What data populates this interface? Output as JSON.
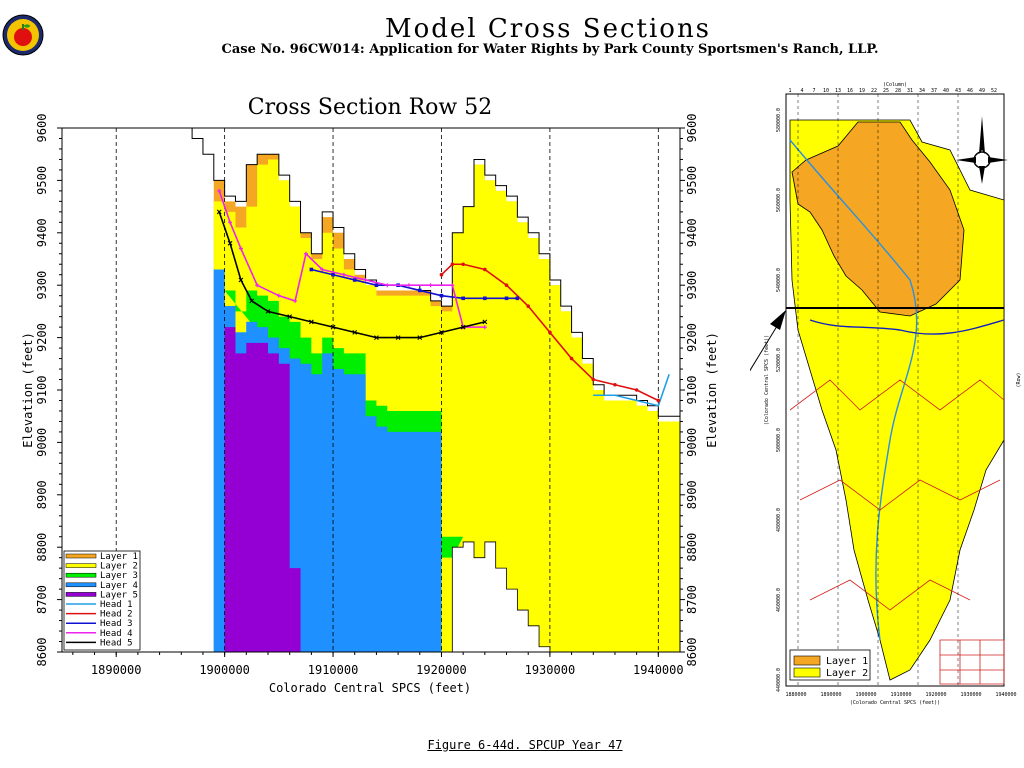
{
  "header": {
    "title": "Model Cross Sections",
    "subtitle": "Case No. 96CW014: Application for Water Rights by Park County Sportsmen's Ranch, LLP."
  },
  "caption": "Figure 6-44d.  SPCUP Year 47",
  "chart_data": {
    "type": "area",
    "title": "Cross Section Row 52",
    "xlabel": "Colorado Central SPCS (feet)",
    "ylabel": "Elevation (feet)",
    "xlim": [
      1885000,
      1942000
    ],
    "ylim": [
      8600,
      9600
    ],
    "x_ticks": [
      "1890000",
      "1900000",
      "1910000",
      "1920000",
      "1930000",
      "1940000"
    ],
    "y_ticks": [
      "8600",
      "8700",
      "8800",
      "8900",
      "9000",
      "9100",
      "9200",
      "9300",
      "9400",
      "9500",
      "9600"
    ],
    "grid": "vertical dashed lines at x ticks",
    "legend_position": "bottom-left",
    "legend": [
      {
        "label": "Layer 1",
        "kind": "layer",
        "color": "#f5a623"
      },
      {
        "label": "Layer 2",
        "kind": "layer",
        "color": "#ffff00"
      },
      {
        "label": "Layer 3",
        "kind": "layer",
        "color": "#00ee00"
      },
      {
        "label": "Layer 4",
        "kind": "layer",
        "color": "#1e90ff"
      },
      {
        "label": "Layer 5",
        "kind": "layer",
        "color": "#9400d3"
      },
      {
        "label": "Head 1",
        "kind": "head",
        "color": "#1ea0e6",
        "marker": "none"
      },
      {
        "label": "Head 2",
        "kind": "head",
        "color": "#e01010",
        "marker": "dot"
      },
      {
        "label": "Head 3",
        "kind": "head",
        "color": "#1010d0",
        "marker": "square"
      },
      {
        "label": "Head 4",
        "kind": "head",
        "color": "#ee22ee",
        "marker": "star"
      },
      {
        "label": "Head 5",
        "kind": "head",
        "color": "#000000",
        "marker": "x"
      }
    ],
    "colors": {
      "layer1": "#f5a623",
      "layer2": "#ffff00",
      "layer3": "#00ee00",
      "layer4": "#1e90ff",
      "layer5": "#9400d3"
    },
    "surface_steps": [
      [
        1896000,
        9600
      ],
      [
        1897000,
        9580
      ],
      [
        1898000,
        9550
      ],
      [
        1899000,
        9500
      ],
      [
        1900000,
        9470
      ],
      [
        1901000,
        9460
      ],
      [
        1902000,
        9530
      ],
      [
        1903000,
        9550
      ],
      [
        1904000,
        9550
      ],
      [
        1905000,
        9510
      ],
      [
        1906000,
        9460
      ],
      [
        1907000,
        9400
      ],
      [
        1908000,
        9360
      ],
      [
        1909000,
        9440
      ],
      [
        1910000,
        9410
      ],
      [
        1911000,
        9360
      ],
      [
        1912000,
        9330
      ],
      [
        1913000,
        9310
      ],
      [
        1914000,
        9300
      ],
      [
        1915000,
        9300
      ],
      [
        1916000,
        9300
      ],
      [
        1917000,
        9300
      ],
      [
        1918000,
        9290
      ],
      [
        1919000,
        9270
      ],
      [
        1920000,
        9260
      ],
      [
        1921000,
        9400
      ],
      [
        1922000,
        9450
      ],
      [
        1923000,
        9540
      ],
      [
        1924000,
        9510
      ],
      [
        1925000,
        9490
      ],
      [
        1926000,
        9470
      ],
      [
        1927000,
        9430
      ],
      [
        1928000,
        9400
      ],
      [
        1929000,
        9360
      ],
      [
        1930000,
        9310
      ],
      [
        1931000,
        9260
      ],
      [
        1932000,
        9210
      ],
      [
        1933000,
        9160
      ],
      [
        1934000,
        9110
      ],
      [
        1935000,
        9090
      ],
      [
        1936000,
        9090
      ],
      [
        1937000,
        9090
      ],
      [
        1938000,
        9080
      ],
      [
        1939000,
        9070
      ],
      [
        1940000,
        9050
      ],
      [
        1941000,
        9050
      ]
    ],
    "layer_tops": {
      "layer1": [
        [
          1899000,
          9500
        ],
        [
          1900000,
          9460
        ],
        [
          1901000,
          9450
        ],
        [
          1902000,
          9530
        ],
        [
          1903000,
          9550
        ],
        [
          1904000,
          9550
        ],
        [
          1905000,
          9500
        ],
        [
          1906000,
          9450
        ],
        [
          1907000,
          9400
        ],
        [
          1908000,
          9360
        ],
        [
          1909000,
          9430
        ],
        [
          1910000,
          9400
        ],
        [
          1911000,
          9350
        ],
        [
          1912000,
          9320
        ],
        [
          1913000,
          9300
        ],
        [
          1914000,
          9290
        ],
        [
          1915000,
          9290
        ],
        [
          1916000,
          9290
        ],
        [
          1917000,
          9290
        ],
        [
          1918000,
          9290
        ],
        [
          1919000,
          9270
        ],
        [
          1920000,
          9260
        ],
        [
          1921000,
          9400
        ],
        [
          1922000,
          9450
        ],
        [
          1923000,
          9530
        ],
        [
          1924000,
          9500
        ],
        [
          1925000,
          9480
        ],
        [
          1926000,
          9460
        ],
        [
          1927000,
          9420
        ],
        [
          1928000,
          9390
        ],
        [
          1929000,
          9350
        ],
        [
          1930000,
          9300
        ],
        [
          1931000,
          9250
        ],
        [
          1932000,
          9200
        ],
        [
          1933000,
          9150
        ],
        [
          1934000,
          9100
        ],
        [
          1935000,
          9080
        ],
        [
          1936000,
          9080
        ],
        [
          1937000,
          9080
        ],
        [
          1938000,
          9070
        ],
        [
          1939000,
          9060
        ],
        [
          1940000,
          9040
        ],
        [
          1941000,
          9040
        ]
      ],
      "layer2_top": [
        [
          1899000,
          9460
        ],
        [
          1900000,
          9440
        ],
        [
          1901000,
          9410
        ],
        [
          1902000,
          9450
        ],
        [
          1903000,
          9530
        ],
        [
          1904000,
          9540
        ],
        [
          1905000,
          9500
        ],
        [
          1906000,
          9450
        ],
        [
          1907000,
          9390
        ],
        [
          1908000,
          9350
        ],
        [
          1909000,
          9400
        ],
        [
          1910000,
          9370
        ],
        [
          1911000,
          9330
        ],
        [
          1912000,
          9310
        ],
        [
          1913000,
          9300
        ],
        [
          1914000,
          9280
        ],
        [
          1915000,
          9280
        ],
        [
          1916000,
          9280
        ],
        [
          1917000,
          9280
        ],
        [
          1918000,
          9280
        ],
        [
          1919000,
          9260
        ],
        [
          1920000,
          9250
        ],
        [
          1921000,
          9400
        ],
        [
          1922000,
          9450
        ],
        [
          1923000,
          9530
        ],
        [
          1924000,
          9500
        ],
        [
          1925000,
          9480
        ],
        [
          1926000,
          9460
        ],
        [
          1927000,
          9420
        ],
        [
          1928000,
          9390
        ],
        [
          1929000,
          9350
        ],
        [
          1930000,
          9300
        ],
        [
          1931000,
          9250
        ],
        [
          1932000,
          9200
        ],
        [
          1933000,
          9150
        ],
        [
          1934000,
          9100
        ],
        [
          1935000,
          9080
        ],
        [
          1936000,
          9080
        ],
        [
          1937000,
          9080
        ],
        [
          1938000,
          9070
        ],
        [
          1939000,
          9060
        ],
        [
          1940000,
          9040
        ],
        [
          1941000,
          9040
        ]
      ],
      "layer3_top": [
        [
          1900000,
          9290
        ],
        [
          1901000,
          9250
        ],
        [
          1902000,
          9290
        ],
        [
          1903000,
          9280
        ],
        [
          1904000,
          9270
        ],
        [
          1905000,
          9240
        ],
        [
          1906000,
          9230
        ],
        [
          1907000,
          9200
        ],
        [
          1908000,
          9170
        ],
        [
          1909000,
          9200
        ],
        [
          1910000,
          9180
        ],
        [
          1911000,
          9170
        ],
        [
          1912000,
          9170
        ],
        [
          1913000,
          9080
        ],
        [
          1914000,
          9070
        ],
        [
          1915000,
          9060
        ],
        [
          1916000,
          9060
        ],
        [
          1917000,
          9060
        ],
        [
          1918000,
          9060
        ],
        [
          1919000,
          9060
        ],
        [
          1920000,
          8820
        ],
        [
          1921000,
          8820
        ]
      ],
      "layer4_top": [
        [
          1899000,
          9330
        ],
        [
          1900000,
          9260
        ],
        [
          1901000,
          9210
        ],
        [
          1902000,
          9230
        ],
        [
          1903000,
          9220
        ],
        [
          1904000,
          9200
        ],
        [
          1905000,
          9180
        ],
        [
          1906000,
          9160
        ],
        [
          1907000,
          9150
        ],
        [
          1908000,
          9130
        ],
        [
          1909000,
          9170
        ],
        [
          1910000,
          9140
        ],
        [
          1911000,
          9130
        ],
        [
          1912000,
          9130
        ],
        [
          1913000,
          9050
        ],
        [
          1914000,
          9030
        ],
        [
          1915000,
          9020
        ],
        [
          1916000,
          9020
        ],
        [
          1917000,
          9020
        ],
        [
          1918000,
          9020
        ],
        [
          1919000,
          9020
        ],
        [
          1920000,
          8600
        ]
      ],
      "layer5_top": [
        [
          1900000,
          9220
        ],
        [
          1901000,
          9170
        ],
        [
          1902000,
          9190
        ],
        [
          1903000,
          9190
        ],
        [
          1904000,
          9170
        ],
        [
          1905000,
          9150
        ],
        [
          1906000,
          8760
        ],
        [
          1907000,
          8600
        ]
      ]
    },
    "layer_bottom": 8600,
    "layer_ranges": {
      "layer2_xmax": 1941000,
      "layer3_x": [
        1900000,
        1921000
      ],
      "layer4_x": [
        1899000,
        1920000
      ],
      "layer5_x": [
        1900000,
        1907000
      ]
    },
    "bottom_cutout": [
      [
        1920000,
        8600
      ],
      [
        1921000,
        8800
      ],
      [
        1922000,
        8810
      ],
      [
        1923000,
        8780
      ],
      [
        1924000,
        8810
      ],
      [
        1925000,
        8760
      ],
      [
        1926000,
        8720
      ],
      [
        1927000,
        8680
      ],
      [
        1928000,
        8650
      ],
      [
        1929000,
        8610
      ],
      [
        1930000,
        8600
      ]
    ],
    "series": [
      {
        "name": "Head 1",
        "x": [
          1934000,
          1936000,
          1938000,
          1940000,
          1941000
        ],
        "y": [
          9090,
          9090,
          9080,
          9070,
          9130
        ]
      },
      {
        "name": "Head 2",
        "x": [
          1920000,
          1921000,
          1922000,
          1924000,
          1926000,
          1928000,
          1930000,
          1932000,
          1934000,
          1936000,
          1938000,
          1940000
        ],
        "y": [
          9320,
          9340,
          9340,
          9330,
          9300,
          9260,
          9210,
          9160,
          9120,
          9110,
          9100,
          9080
        ]
      },
      {
        "name": "Head 3",
        "x": [
          1908000,
          1910000,
          1912000,
          1914000,
          1916000,
          1918000,
          1920000,
          1922000,
          1924000,
          1926000,
          1927000
        ],
        "y": [
          9330,
          9320,
          9310,
          9300,
          9300,
          9290,
          9280,
          9275,
          9275,
          9275,
          9275
        ]
      },
      {
        "name": "Head 4",
        "x": [
          1899500,
          1900500,
          1901500,
          1903000,
          1905000,
          1906500,
          1907500,
          1909000,
          1911000,
          1913000,
          1915000,
          1917000,
          1919000,
          1921000,
          1922000,
          1924000
        ],
        "y": [
          9480,
          9420,
          9370,
          9300,
          9280,
          9270,
          9360,
          9330,
          9320,
          9310,
          9300,
          9300,
          9300,
          9300,
          9220,
          9220
        ]
      },
      {
        "name": "Head 5",
        "x": [
          1899500,
          1900500,
          1901500,
          1902500,
          1904000,
          1906000,
          1908000,
          1910000,
          1912000,
          1914000,
          1916000,
          1918000,
          1920000,
          1922000,
          1924000
        ],
        "y": [
          9440,
          9380,
          9310,
          9270,
          9250,
          9240,
          9230,
          9220,
          9210,
          9200,
          9200,
          9200,
          9210,
          9220,
          9230
        ]
      }
    ]
  },
  "map_inset": {
    "top_axis_label": "(Column)",
    "bottom_axis_label": "(Colorado Central SPCS (feet))",
    "right_axis_label": "(Row)",
    "left_axis_label": "(Colorado Central SPCS (feet))",
    "column_ticks": [
      "1",
      "4",
      "7",
      "10",
      "13",
      "16",
      "19",
      "22",
      "25",
      "28",
      "31",
      "34",
      "37",
      "40",
      "43",
      "46",
      "49",
      "52"
    ],
    "x_ticks": [
      "1880000",
      "1890000",
      "1900000",
      "1910000",
      "1920000",
      "1930000",
      "1940000"
    ],
    "y_ticks": [
      "440000.0",
      "460000.0",
      "480000.0",
      "500000.0",
      "520000.0",
      "540000.0",
      "560000.0",
      "580000.0"
    ],
    "legend": [
      {
        "label": "Layer 1",
        "color": "#f5a623"
      },
      {
        "label": "Layer 2",
        "color": "#ffff00"
      }
    ]
  }
}
